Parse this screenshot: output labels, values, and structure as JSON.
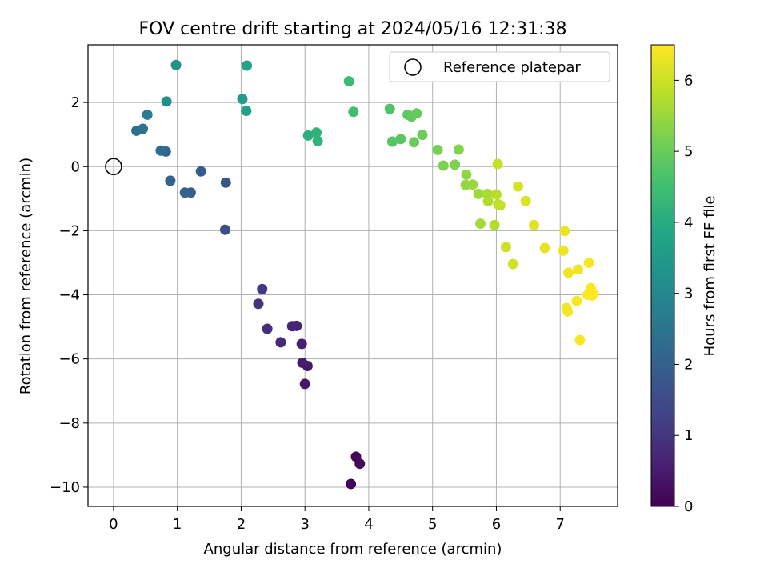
{
  "chart_data": {
    "type": "scatter",
    "title": "FOV centre drift starting at 2024/05/16 12:31:38",
    "xlabel": "Angular distance from reference (arcmin)",
    "ylabel": "Rotation from reference (arcmin)",
    "xlim": [
      -0.4,
      7.9
    ],
    "ylim": [
      -10.6,
      3.8
    ],
    "xticks": [
      "0",
      "1",
      "2",
      "3",
      "4",
      "5",
      "6",
      "7"
    ],
    "yticks": [
      "−10",
      "−8",
      "−6",
      "−4",
      "−2",
      "0",
      "2"
    ],
    "grid": true,
    "legend": {
      "placement": "top-right",
      "entries": [
        "Reference platepar"
      ]
    },
    "colorbar": {
      "label": "Hours from first FF file",
      "range": [
        0,
        6.5
      ],
      "ticks": [
        "0",
        "1",
        "2",
        "3",
        "4",
        "5",
        "6"
      ],
      "colormap": "viridis"
    },
    "reference_point": {
      "x": 0,
      "y": 0
    },
    "points": [
      {
        "x": 3.72,
        "y": -9.9,
        "hours": 0.05
      },
      {
        "x": 3.8,
        "y": -9.05,
        "hours": 0.1
      },
      {
        "x": 3.86,
        "y": -9.27,
        "hours": 0.15
      },
      {
        "x": 3.0,
        "y": -6.78,
        "hours": 0.4
      },
      {
        "x": 3.04,
        "y": -6.22,
        "hours": 0.45
      },
      {
        "x": 2.96,
        "y": -6.12,
        "hours": 0.5
      },
      {
        "x": 2.95,
        "y": -5.53,
        "hours": 0.55
      },
      {
        "x": 2.87,
        "y": -4.97,
        "hours": 0.65
      },
      {
        "x": 2.8,
        "y": -4.98,
        "hours": 0.7
      },
      {
        "x": 2.62,
        "y": -5.48,
        "hours": 0.75
      },
      {
        "x": 2.41,
        "y": -5.06,
        "hours": 0.85
      },
      {
        "x": 2.27,
        "y": -4.28,
        "hours": 0.95
      },
      {
        "x": 2.33,
        "y": -3.82,
        "hours": 1.05
      },
      {
        "x": 1.75,
        "y": -1.97,
        "hours": 1.55
      },
      {
        "x": 1.76,
        "y": -0.5,
        "hours": 1.7
      },
      {
        "x": 1.37,
        "y": -0.15,
        "hours": 1.85
      },
      {
        "x": 1.21,
        "y": -0.81,
        "hours": 1.95
      },
      {
        "x": 1.12,
        "y": -0.81,
        "hours": 2.0
      },
      {
        "x": 0.89,
        "y": -0.44,
        "hours": 2.1
      },
      {
        "x": 0.82,
        "y": 0.47,
        "hours": 2.2
      },
      {
        "x": 0.74,
        "y": 0.5,
        "hours": 2.3
      },
      {
        "x": 0.36,
        "y": 1.12,
        "hours": 2.4
      },
      {
        "x": 0.46,
        "y": 1.18,
        "hours": 2.5
      },
      {
        "x": 0.53,
        "y": 1.62,
        "hours": 2.75
      },
      {
        "x": 0.83,
        "y": 2.03,
        "hours": 3.2
      },
      {
        "x": 0.98,
        "y": 3.17,
        "hours": 3.3
      },
      {
        "x": 2.02,
        "y": 2.11,
        "hours": 3.6
      },
      {
        "x": 2.08,
        "y": 1.74,
        "hours": 3.7
      },
      {
        "x": 2.09,
        "y": 3.15,
        "hours": 3.8
      },
      {
        "x": 3.05,
        "y": 0.97,
        "hours": 4.1
      },
      {
        "x": 3.18,
        "y": 1.06,
        "hours": 4.15
      },
      {
        "x": 3.2,
        "y": 0.8,
        "hours": 4.2
      },
      {
        "x": 3.69,
        "y": 2.66,
        "hours": 4.4
      },
      {
        "x": 3.76,
        "y": 1.71,
        "hours": 4.5
      },
      {
        "x": 4.33,
        "y": 1.8,
        "hours": 4.7
      },
      {
        "x": 4.37,
        "y": 0.78,
        "hours": 4.75
      },
      {
        "x": 4.5,
        "y": 0.86,
        "hours": 4.8
      },
      {
        "x": 4.61,
        "y": 1.62,
        "hours": 4.85
      },
      {
        "x": 4.67,
        "y": 1.56,
        "hours": 4.9
      },
      {
        "x": 4.75,
        "y": 1.66,
        "hours": 4.95
      },
      {
        "x": 4.71,
        "y": 0.76,
        "hours": 5.0
      },
      {
        "x": 4.84,
        "y": 0.99,
        "hours": 5.05
      },
      {
        "x": 5.08,
        "y": 0.52,
        "hours": 5.15
      },
      {
        "x": 5.17,
        "y": 0.03,
        "hours": 5.2
      },
      {
        "x": 5.35,
        "y": 0.06,
        "hours": 5.25
      },
      {
        "x": 5.41,
        "y": 0.53,
        "hours": 5.3
      },
      {
        "x": 5.53,
        "y": -0.25,
        "hours": 5.4
      },
      {
        "x": 5.52,
        "y": -0.57,
        "hours": 5.45
      },
      {
        "x": 5.63,
        "y": -0.56,
        "hours": 5.5
      },
      {
        "x": 5.72,
        "y": -0.85,
        "hours": 5.55
      },
      {
        "x": 5.75,
        "y": -1.78,
        "hours": 5.6
      },
      {
        "x": 5.86,
        "y": -0.85,
        "hours": 5.65
      },
      {
        "x": 5.87,
        "y": -1.08,
        "hours": 5.7
      },
      {
        "x": 5.97,
        "y": -1.82,
        "hours": 5.75
      },
      {
        "x": 6.0,
        "y": -0.87,
        "hours": 5.8
      },
      {
        "x": 6.03,
        "y": -1.18,
        "hours": 5.85
      },
      {
        "x": 6.06,
        "y": -1.21,
        "hours": 5.9
      },
      {
        "x": 6.02,
        "y": 0.08,
        "hours": 5.95
      },
      {
        "x": 6.15,
        "y": -2.51,
        "hours": 6.0
      },
      {
        "x": 6.26,
        "y": -3.04,
        "hours": 6.05
      },
      {
        "x": 6.34,
        "y": -0.62,
        "hours": 6.1
      },
      {
        "x": 6.46,
        "y": -1.07,
        "hours": 6.15
      },
      {
        "x": 6.59,
        "y": -1.82,
        "hours": 6.2
      },
      {
        "x": 6.76,
        "y": -2.54,
        "hours": 6.25
      },
      {
        "x": 7.07,
        "y": -2.01,
        "hours": 6.3
      },
      {
        "x": 7.05,
        "y": -2.62,
        "hours": 6.32
      },
      {
        "x": 7.13,
        "y": -3.31,
        "hours": 6.35
      },
      {
        "x": 7.28,
        "y": -3.21,
        "hours": 6.38
      },
      {
        "x": 7.1,
        "y": -4.41,
        "hours": 6.4
      },
      {
        "x": 7.12,
        "y": -4.52,
        "hours": 6.42
      },
      {
        "x": 7.26,
        "y": -4.19,
        "hours": 6.44
      },
      {
        "x": 7.31,
        "y": -5.41,
        "hours": 6.45
      },
      {
        "x": 7.45,
        "y": -3.0,
        "hours": 6.46
      },
      {
        "x": 7.43,
        "y": -4.0,
        "hours": 6.47
      },
      {
        "x": 7.48,
        "y": -3.79,
        "hours": 6.48
      },
      {
        "x": 7.5,
        "y": -4.02,
        "hours": 6.49
      },
      {
        "x": 7.52,
        "y": -3.96,
        "hours": 6.5
      }
    ]
  }
}
